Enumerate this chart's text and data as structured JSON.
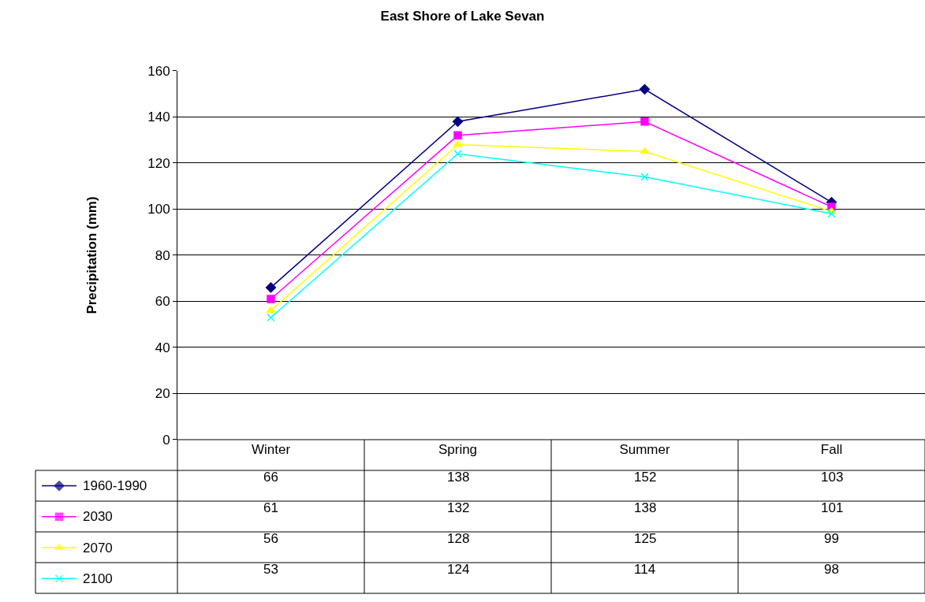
{
  "chart_data": {
    "type": "line",
    "title": "East Shore of Lake Sevan",
    "ylabel": "Precipitation (mm)",
    "categories": [
      "Winter",
      "Spring",
      "Summer",
      "Fall"
    ],
    "series": [
      {
        "name": "1960-1990",
        "color": "#000080",
        "marker": "diamond",
        "values": [
          66,
          138,
          152,
          103
        ]
      },
      {
        "name": "2030",
        "color": "#ff00ff",
        "marker": "square",
        "values": [
          61,
          132,
          138,
          101
        ]
      },
      {
        "name": "2070",
        "color": "#ffff00",
        "marker": "triangle",
        "values": [
          56,
          128,
          125,
          99
        ]
      },
      {
        "name": "2100",
        "color": "#00ffff",
        "marker": "cross",
        "values": [
          53,
          124,
          114,
          98
        ]
      }
    ],
    "ylim": [
      0,
      160
    ],
    "yticks": [
      0,
      20,
      40,
      60,
      80,
      100,
      120,
      140,
      160
    ],
    "grid": "y",
    "legend": "bottom",
    "data_labels": true,
    "line_style": "solid"
  }
}
